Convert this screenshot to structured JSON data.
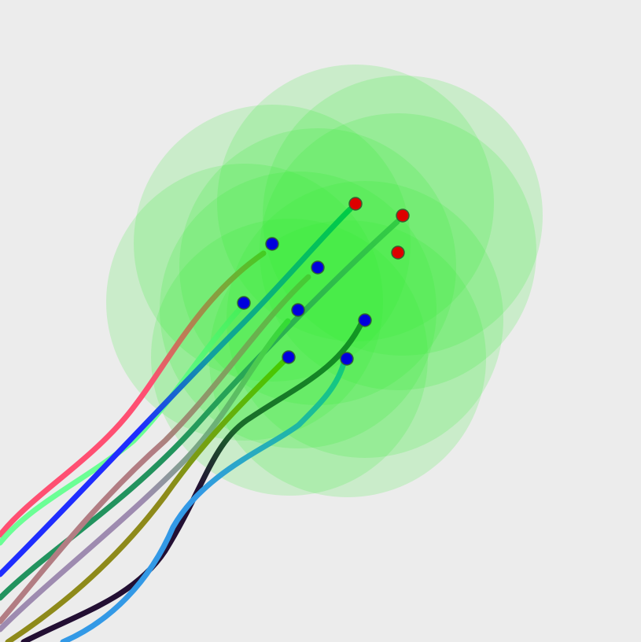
{
  "scene": {
    "background": "#ececec",
    "halo_color": "#33ee33",
    "blue_node_color": "#0000dd",
    "red_node_color": "#dd0000",
    "trail_colors": [
      "#ff4f72",
      "#6bff95",
      "#1f2dff",
      "#22935e",
      "#b27d83",
      "#9e8bb0",
      "#8e8a1a",
      "#230f33",
      "#3399e6"
    ],
    "blue_node_count": 7,
    "red_node_count": 3
  }
}
